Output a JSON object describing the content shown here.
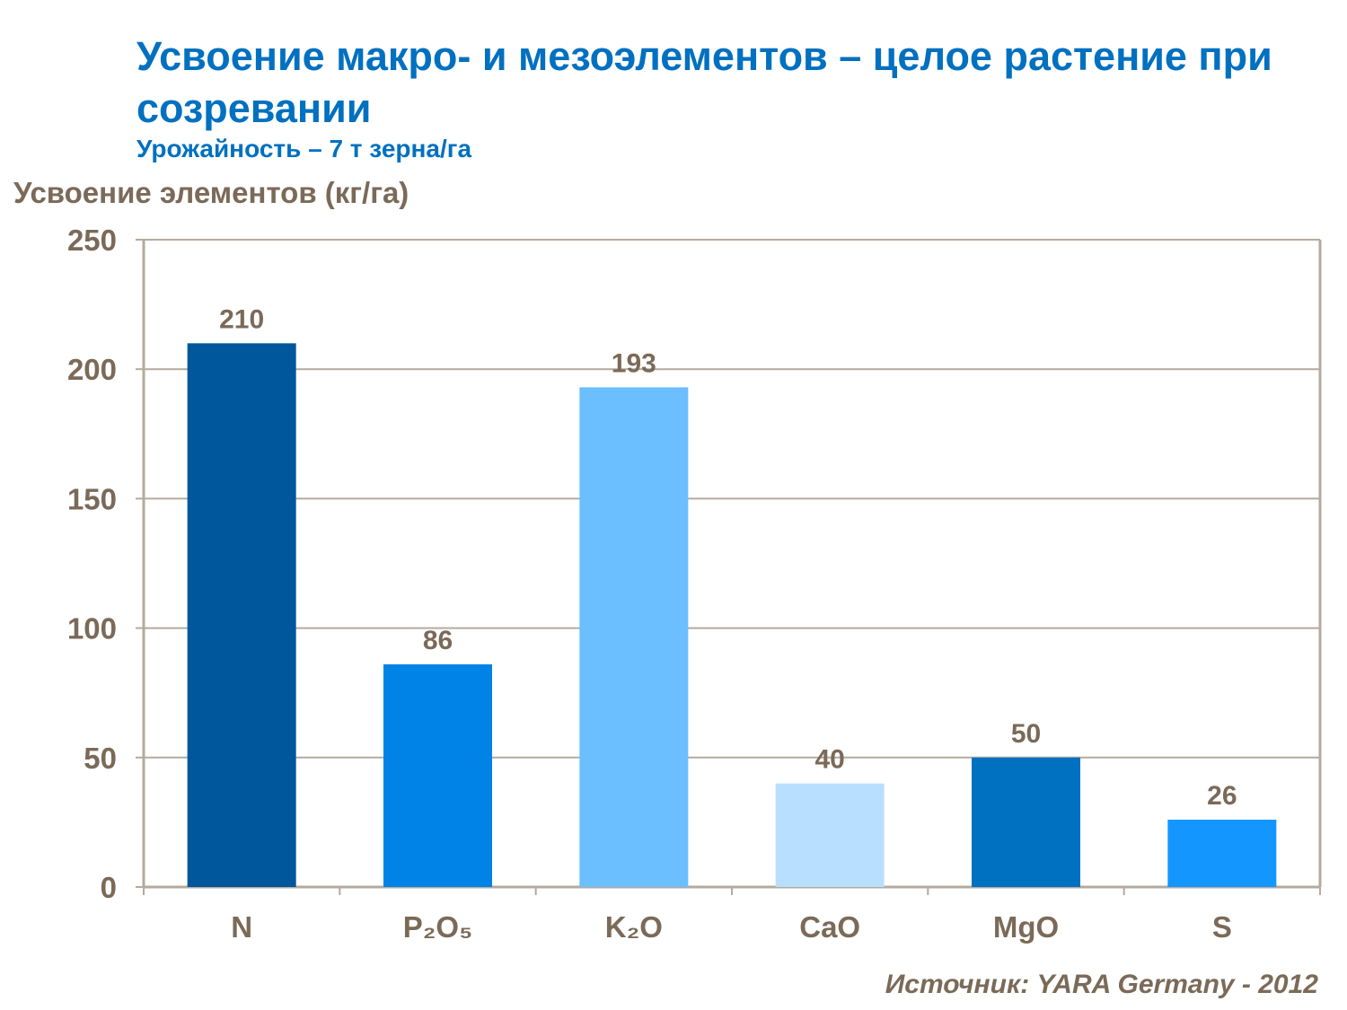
{
  "chart_data": {
    "type": "bar",
    "title": "Усвоение макро- и мезоэлементов – целое растение при созревании",
    "subtitle": "Урожайность – 7 т зерна/га",
    "ylabel": "Усвоение элементов (кг/га)",
    "xlabel": "",
    "categories": [
      "N",
      "P₂O₅",
      "K₂O",
      "CaO",
      "MgO",
      "S"
    ],
    "values": [
      210,
      86,
      193,
      40,
      50,
      26
    ],
    "colors": [
      "#00579b",
      "#0083e6",
      "#6bbfff",
      "#b8dfff",
      "#0070c0",
      "#1397ff"
    ],
    "ylim": [
      0,
      250
    ],
    "yticks": [
      0,
      50,
      100,
      150,
      200,
      250
    ],
    "grid": true,
    "data_labels": true,
    "source": "Источник: YARA Germany - 2012"
  }
}
